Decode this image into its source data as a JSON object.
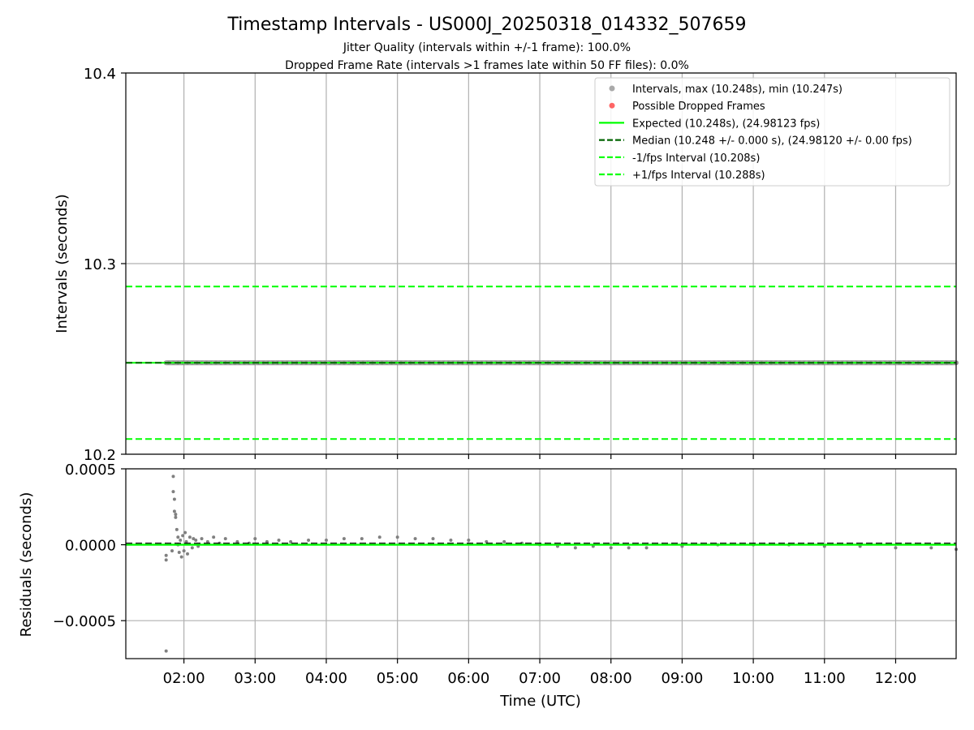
{
  "title": "Timestamp Intervals - US000J_20250318_014332_507659",
  "subtitle_lines": [
    "Jitter Quality (intervals within +/-1 frame): 100.0%",
    "Dropped Frame Rate (intervals >1 frames late within 50 FF files): 0.0%"
  ],
  "colors": {
    "intervals": "#808080",
    "intervals_legend": "#a9a9a9",
    "dropped": "#ff0000",
    "expected": "#00ff00",
    "median": "#006400",
    "bounds": "#00ff00",
    "grid": "#b0b0b0"
  },
  "chart_data": [
    {
      "type": "scatter",
      "ylabel": "Intervals (seconds)",
      "ylim": [
        10.2,
        10.4
      ],
      "yticks": [
        10.2,
        10.3,
        10.4
      ],
      "ytick_labels": [
        "10.2",
        "10.3",
        "10.4"
      ],
      "xlim": [
        "01:11",
        "12:51"
      ],
      "xticks": [
        "02:00",
        "03:00",
        "04:00",
        "05:00",
        "06:00",
        "07:00",
        "08:00",
        "09:00",
        "10:00",
        "11:00",
        "12:00"
      ],
      "grid": true,
      "legend_position": "top-right",
      "legend": [
        {
          "label": "Intervals, max (10.248s), min (10.247s)",
          "kind": "dot",
          "color": "#a9a9a9"
        },
        {
          "label": "Possible Dropped Frames",
          "kind": "dot",
          "color": "#ff0000"
        },
        {
          "label": "Expected (10.248s), (24.98123 fps)",
          "kind": "line",
          "color": "#00ff00"
        },
        {
          "label": "Median (10.248 +/- 0.000 s), (24.98120 +/- 0.00 fps)",
          "kind": "dashed",
          "color": "#006400"
        },
        {
          "label": "-1/fps Interval (10.208s)",
          "kind": "dashed",
          "color": "#00ff00"
        },
        {
          "label": "+1/fps Interval (10.288s)",
          "kind": "dashed",
          "color": "#00ff00"
        }
      ],
      "series": [
        {
          "name": "Intervals",
          "x_range": [
            "01:45",
            "12:51"
          ],
          "y": 10.248
        },
        {
          "name": "Expected",
          "y": 10.248
        },
        {
          "name": "Median",
          "y": 10.248
        },
        {
          "name": "-1/fps Interval",
          "y": 10.208
        },
        {
          "name": "+1/fps Interval",
          "y": 10.288
        }
      ]
    },
    {
      "type": "scatter",
      "xlabel": "Time (UTC)",
      "ylabel": "Residuals (seconds)",
      "ylim": [
        -0.00075,
        0.0005
      ],
      "yticks": [
        0.0005,
        0.0,
        -0.0005
      ],
      "ytick_labels": [
        "0.0005",
        "0.0000",
        "−0.0005"
      ],
      "xlim": [
        "01:11",
        "12:51"
      ],
      "xticks": [
        "02:00",
        "03:00",
        "04:00",
        "05:00",
        "06:00",
        "07:00",
        "08:00",
        "09:00",
        "10:00",
        "11:00",
        "12:00"
      ],
      "grid": true,
      "series": [
        {
          "name": "Residuals",
          "points": [
            [
              "01:45",
              -0.0001
            ],
            [
              "01:45",
              -7e-05
            ],
            [
              "01:45",
              -0.0007
            ],
            [
              "01:50",
              -4e-05
            ],
            [
              "01:51",
              0.00045
            ],
            [
              "01:51",
              0.00035
            ],
            [
              "01:52",
              0.0003
            ],
            [
              "01:52",
              0.00022
            ],
            [
              "01:53",
              0.0002
            ],
            [
              "01:53",
              0.00018
            ],
            [
              "01:54",
              0.0001
            ],
            [
              "01:55",
              5e-05
            ],
            [
              "01:55",
              0.0
            ],
            [
              "01:56",
              -5e-05
            ],
            [
              "01:57",
              3e-05
            ],
            [
              "01:58",
              -8e-05
            ],
            [
              "01:59",
              6e-05
            ],
            [
              "02:00",
              -4e-05
            ],
            [
              "02:01",
              8e-05
            ],
            [
              "02:02",
              2e-05
            ],
            [
              "02:03",
              -6e-05
            ],
            [
              "02:05",
              5e-05
            ],
            [
              "02:07",
              -2e-05
            ],
            [
              "02:08",
              4e-05
            ],
            [
              "02:10",
              3e-05
            ],
            [
              "02:12",
              -1e-05
            ],
            [
              "02:15",
              4e-05
            ],
            [
              "02:20",
              2e-05
            ],
            [
              "02:25",
              5e-05
            ],
            [
              "02:30",
              1e-05
            ],
            [
              "02:35",
              4e-05
            ],
            [
              "02:45",
              2e-05
            ],
            [
              "02:55",
              1e-05
            ],
            [
              "03:00",
              4e-05
            ],
            [
              "03:10",
              2e-05
            ],
            [
              "03:20",
              3e-05
            ],
            [
              "03:30",
              2e-05
            ],
            [
              "03:45",
              3e-05
            ],
            [
              "04:00",
              3e-05
            ],
            [
              "04:15",
              4e-05
            ],
            [
              "04:30",
              4e-05
            ],
            [
              "04:45",
              5e-05
            ],
            [
              "05:00",
              5e-05
            ],
            [
              "05:15",
              4e-05
            ],
            [
              "05:30",
              4e-05
            ],
            [
              "05:45",
              3e-05
            ],
            [
              "06:00",
              3e-05
            ],
            [
              "06:15",
              2e-05
            ],
            [
              "06:30",
              2e-05
            ],
            [
              "06:45",
              1e-05
            ],
            [
              "07:00",
              0.0
            ],
            [
              "07:15",
              -1e-05
            ],
            [
              "07:30",
              -2e-05
            ],
            [
              "07:45",
              -1e-05
            ],
            [
              "08:00",
              -2e-05
            ],
            [
              "08:15",
              -2e-05
            ],
            [
              "08:30",
              -2e-05
            ],
            [
              "09:00",
              -1e-05
            ],
            [
              "09:30",
              0.0
            ],
            [
              "10:00",
              0.0
            ],
            [
              "10:30",
              0.0
            ],
            [
              "11:00",
              -1e-05
            ],
            [
              "11:30",
              -1e-05
            ],
            [
              "12:00",
              -2e-05
            ],
            [
              "12:30",
              -2e-05
            ],
            [
              "12:51",
              -3e-05
            ]
          ]
        },
        {
          "name": "Expected",
          "y": 0.0
        },
        {
          "name": "Median",
          "y": 1e-05
        }
      ]
    }
  ]
}
